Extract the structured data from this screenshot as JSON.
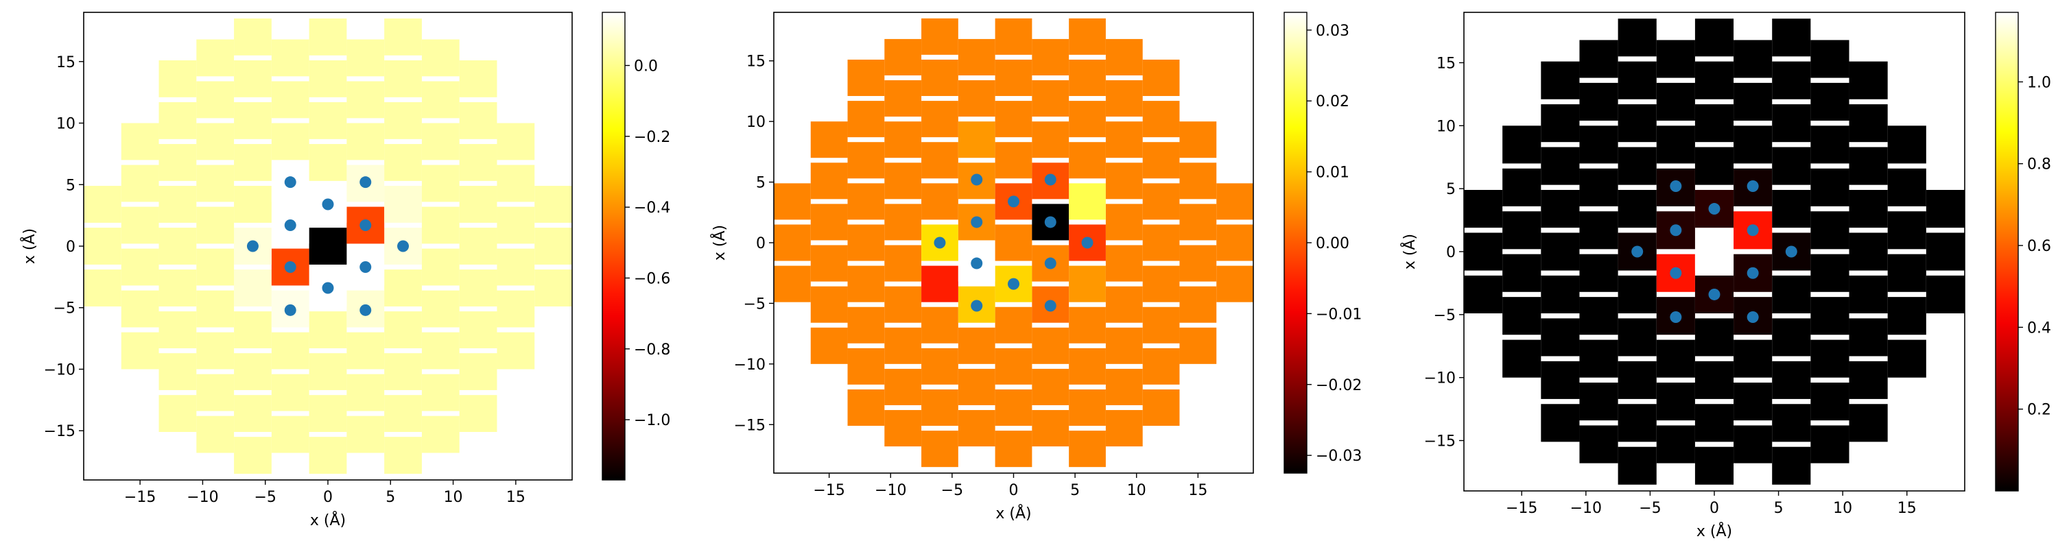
{
  "chart_data": [
    {
      "type": "heatmap",
      "xlabel": "x (Å)",
      "ylabel": "x (Å)",
      "xlim": [
        -19.5,
        19.5
      ],
      "ylim": [
        -19,
        19
      ],
      "xticks": [
        -15,
        -10,
        -5,
        0,
        5,
        10,
        15
      ],
      "yticks": [
        -15,
        -10,
        -5,
        0,
        5,
        10,
        15
      ],
      "colormap": "hot",
      "colorbar": {
        "min": -1.17,
        "max": 0.15,
        "ticks": [
          0.0,
          -0.2,
          -0.4,
          -0.6,
          -0.8,
          -1.0
        ]
      },
      "background_value": 0.03,
      "cells": [
        {
          "x": 0,
          "y": 0,
          "value": -1.17
        },
        {
          "x": 3,
          "y": 1.7,
          "value": -0.55
        },
        {
          "x": -3,
          "y": -1.7,
          "value": -0.55
        },
        {
          "x": -3,
          "y": 1.7,
          "value": 0.15
        },
        {
          "x": 3,
          "y": -1.7,
          "value": 0.15
        },
        {
          "x": 0,
          "y": 3.4,
          "value": 0.15
        },
        {
          "x": 0,
          "y": -3.4,
          "value": 0.15
        },
        {
          "x": -3,
          "y": 5.1,
          "value": 0.15
        },
        {
          "x": 3,
          "y": 5.1,
          "value": 0.1
        },
        {
          "x": -3,
          "y": -5.1,
          "value": 0.12
        },
        {
          "x": 3,
          "y": -5.1,
          "value": 0.09
        },
        {
          "x": -6,
          "y": 0,
          "value": 0.1
        },
        {
          "x": 6,
          "y": 0,
          "value": 0.1
        },
        {
          "x": 6,
          "y": 3.4,
          "value": 0.09
        },
        {
          "x": -6,
          "y": -3.4,
          "value": 0.09
        }
      ],
      "points": [
        {
          "x": -3,
          "y": 5.2
        },
        {
          "x": 3,
          "y": 5.2
        },
        {
          "x": 0,
          "y": 3.4
        },
        {
          "x": -3,
          "y": 1.7
        },
        {
          "x": 3,
          "y": 1.7
        },
        {
          "x": -6,
          "y": 0
        },
        {
          "x": 6,
          "y": 0
        },
        {
          "x": -3,
          "y": -1.7
        },
        {
          "x": 3,
          "y": -1.7
        },
        {
          "x": 0,
          "y": -3.4
        },
        {
          "x": -3,
          "y": -5.2
        },
        {
          "x": 3,
          "y": -5.2
        }
      ]
    },
    {
      "type": "heatmap",
      "xlabel": "x (Å)",
      "ylabel": "x (Å)",
      "xlim": [
        -19.5,
        19.5
      ],
      "ylim": [
        -19,
        19
      ],
      "xticks": [
        -15,
        -10,
        -5,
        0,
        5,
        10,
        15
      ],
      "yticks": [
        -15,
        -10,
        -5,
        0,
        5,
        10,
        15
      ],
      "colormap": "hot",
      "colorbar": {
        "min": -0.0325,
        "max": 0.0325,
        "ticks": [
          0.03,
          0.02,
          0.01,
          0.0,
          -0.01,
          -0.02,
          -0.03
        ]
      },
      "background_value": 0.004,
      "cells": [
        {
          "x": 3,
          "y": 1.7,
          "value": -0.0325
        },
        {
          "x": -3,
          "y": -1.7,
          "value": 0.0325
        },
        {
          "x": 6,
          "y": 3.4,
          "value": 0.021
        },
        {
          "x": -6,
          "y": 0,
          "value": 0.013
        },
        {
          "x": 0,
          "y": -3.4,
          "value": 0.012
        },
        {
          "x": -3,
          "y": -5.1,
          "value": 0.011
        },
        {
          "x": -6,
          "y": -3.4,
          "value": -0.006
        },
        {
          "x": 6,
          "y": 0,
          "value": -0.003
        },
        {
          "x": 0,
          "y": 3.4,
          "value": -0.001
        },
        {
          "x": 3,
          "y": 5.1,
          "value": -0.001
        },
        {
          "x": -3,
          "y": 1.7,
          "value": 0.005
        },
        {
          "x": 3,
          "y": -1.7,
          "value": 0.004
        },
        {
          "x": 3,
          "y": -5.1,
          "value": 0.002
        },
        {
          "x": -3,
          "y": 5.1,
          "value": 0.005
        },
        {
          "x": 6,
          "y": -3.4,
          "value": 0.006
        },
        {
          "x": -3,
          "y": 8.5,
          "value": 0.006
        }
      ],
      "points": [
        {
          "x": -3,
          "y": 5.2
        },
        {
          "x": 3,
          "y": 5.2
        },
        {
          "x": 0,
          "y": 3.4
        },
        {
          "x": -3,
          "y": 1.7
        },
        {
          "x": 3,
          "y": 1.7
        },
        {
          "x": -6,
          "y": 0
        },
        {
          "x": 6,
          "y": 0
        },
        {
          "x": -3,
          "y": -1.7
        },
        {
          "x": 3,
          "y": -1.7
        },
        {
          "x": 0,
          "y": -3.4
        },
        {
          "x": -3,
          "y": -5.2
        },
        {
          "x": 3,
          "y": -5.2
        }
      ]
    },
    {
      "type": "heatmap",
      "xlabel": "x (Å)",
      "ylabel": "x (Å)",
      "xlim": [
        -19.5,
        19.5
      ],
      "ylim": [
        -19,
        19
      ],
      "xticks": [
        -15,
        -10,
        -5,
        0,
        5,
        10,
        15
      ],
      "yticks": [
        -15,
        -10,
        -5,
        0,
        5,
        10,
        15
      ],
      "colormap": "hot",
      "colorbar": {
        "min": 0.0,
        "max": 1.17,
        "ticks": [
          1.0,
          0.8,
          0.6,
          0.4,
          0.2
        ]
      },
      "background_value": 0.0,
      "cells": [
        {
          "x": 0,
          "y": 0,
          "value": 1.17
        },
        {
          "x": 3,
          "y": 1.7,
          "value": 0.46
        },
        {
          "x": -3,
          "y": -1.7,
          "value": 0.46
        },
        {
          "x": -3,
          "y": 1.7,
          "value": 0.06
        },
        {
          "x": 3,
          "y": -1.7,
          "value": 0.05
        },
        {
          "x": 0,
          "y": 3.4,
          "value": 0.07
        },
        {
          "x": 0,
          "y": -3.4,
          "value": 0.05
        },
        {
          "x": -3,
          "y": 5.1,
          "value": 0.03
        },
        {
          "x": 3,
          "y": 5.1,
          "value": 0.03
        },
        {
          "x": -3,
          "y": -5.1,
          "value": 0.03
        },
        {
          "x": 3,
          "y": -5.1,
          "value": 0.03
        },
        {
          "x": -6,
          "y": 0,
          "value": 0.02
        },
        {
          "x": 6,
          "y": 0,
          "value": 0.02
        }
      ],
      "points": [
        {
          "x": -3,
          "y": 5.2
        },
        {
          "x": 3,
          "y": 5.2
        },
        {
          "x": 0,
          "y": 3.4
        },
        {
          "x": -3,
          "y": 1.7
        },
        {
          "x": 3,
          "y": 1.7
        },
        {
          "x": -6,
          "y": 0
        },
        {
          "x": 6,
          "y": 0
        },
        {
          "x": -3,
          "y": -1.7
        },
        {
          "x": 3,
          "y": -1.7
        },
        {
          "x": 0,
          "y": -3.4
        },
        {
          "x": -3,
          "y": -5.2
        },
        {
          "x": 3,
          "y": -5.2
        }
      ]
    }
  ],
  "colors": {
    "point": "#1f77b4",
    "frame": "#000000"
  }
}
